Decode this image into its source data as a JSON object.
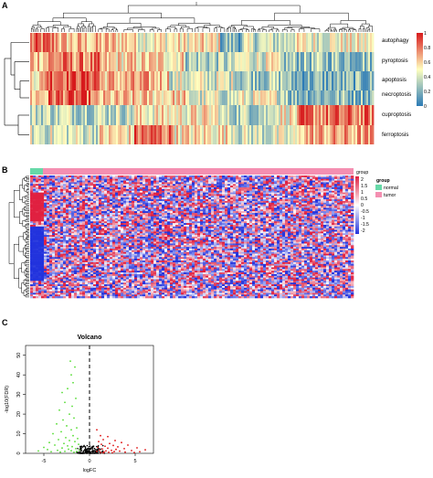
{
  "panels": {
    "a": {
      "label": "A",
      "rows": [
        "autophagy",
        "pyroptosis",
        "apoptosis",
        "necroptosis",
        "cuproptosis",
        "ferroptosis"
      ],
      "colorbar_ticks": [
        "1",
        "0.8",
        "0.6",
        "0.4",
        "0.2",
        "0"
      ],
      "colors": {
        "high": "#d7191c",
        "mid": "#ffffbf",
        "low": "#2c7bb6"
      }
    },
    "b": {
      "label": "B",
      "group_title": "group",
      "scale_ticks": [
        "2",
        "1.5",
        "1",
        "0.5",
        "0",
        "-0.5",
        "-1",
        "-1.5",
        "-2"
      ],
      "legend_title": "group",
      "legend_items": [
        {
          "label": "normal",
          "color": "#66d9a8"
        },
        {
          "label": "tumor",
          "color": "#f48fb1"
        }
      ],
      "colors": {
        "high": "#e02040",
        "low": "#2233dd"
      }
    },
    "c": {
      "label": "C",
      "title": "Volcano",
      "xlabel": "logFC",
      "ylabel": "-log10(FDR)",
      "xticks": [
        "-5",
        "0",
        "5"
      ],
      "yticks": [
        "0",
        "10",
        "20",
        "30",
        "40",
        "50"
      ],
      "colors": {
        "up": "#e01010",
        "down": "#55dd33",
        "ns": "#000000"
      }
    }
  },
  "chart_data": {
    "type": "scatter",
    "title": "Volcano",
    "xlabel": "logFC",
    "ylabel": "-log10(FDR)",
    "xlim": [
      -7,
      7
    ],
    "ylim": [
      0,
      55
    ],
    "cutoff_x": 0,
    "series": [
      {
        "name": "down",
        "color": "#55dd33",
        "points": [
          [
            -2.1,
            47
          ],
          [
            -1.6,
            44
          ],
          [
            -2.0,
            40
          ],
          [
            -1.8,
            36
          ],
          [
            -2.4,
            33
          ],
          [
            -3.0,
            31
          ],
          [
            -1.5,
            28
          ],
          [
            -2.7,
            26
          ],
          [
            -1.9,
            24
          ],
          [
            -3.3,
            22
          ],
          [
            -2.2,
            20
          ],
          [
            -1.7,
            18
          ],
          [
            -2.9,
            17
          ],
          [
            -3.6,
            15
          ],
          [
            -2.5,
            14
          ],
          [
            -1.4,
            13
          ],
          [
            -2.0,
            12
          ],
          [
            -3.1,
            11
          ],
          [
            -4.0,
            10
          ],
          [
            -1.8,
            9
          ],
          [
            -2.6,
            8
          ],
          [
            -1.3,
            7.5
          ],
          [
            -3.4,
            7
          ],
          [
            -2.2,
            6.5
          ],
          [
            -1.6,
            6
          ],
          [
            -4.4,
            5.5
          ],
          [
            -2.8,
            5
          ],
          [
            -1.2,
            4.6
          ],
          [
            -3.8,
            4.2
          ],
          [
            -2.4,
            3.8
          ],
          [
            -1.9,
            3.4
          ],
          [
            -5.0,
            3
          ],
          [
            -3.0,
            2.7
          ],
          [
            -1.5,
            2.4
          ],
          [
            -2.3,
            2.1
          ],
          [
            -4.6,
            1.9
          ],
          [
            -1.1,
            1.7
          ],
          [
            -3.5,
            1.5
          ],
          [
            -2.0,
            1.3
          ],
          [
            -5.6,
            1.2
          ],
          [
            -2.7,
            1
          ],
          [
            -1.4,
            0.9
          ],
          [
            -4.2,
            0.8
          ],
          [
            -3.2,
            0.6
          ],
          [
            -1.7,
            0.5
          ]
        ]
      },
      {
        "name": "up",
        "color": "#e01010",
        "points": [
          [
            0.8,
            12
          ],
          [
            1.2,
            9
          ],
          [
            2.0,
            8.5
          ],
          [
            1.5,
            7
          ],
          [
            2.8,
            6.5
          ],
          [
            1.0,
            6
          ],
          [
            3.5,
            5.5
          ],
          [
            2.2,
            5
          ],
          [
            1.3,
            4.6
          ],
          [
            4.2,
            4.2
          ],
          [
            2.6,
            4
          ],
          [
            1.7,
            3.6
          ],
          [
            3.1,
            3.3
          ],
          [
            0.9,
            3
          ],
          [
            5.2,
            2.8
          ],
          [
            2.0,
            2.6
          ],
          [
            3.8,
            2.4
          ],
          [
            1.4,
            2.2
          ],
          [
            2.9,
            2
          ],
          [
            6.1,
            1.8
          ],
          [
            1.1,
            1.7
          ],
          [
            2.4,
            1.5
          ],
          [
            4.6,
            1.4
          ],
          [
            1.8,
            1.2
          ],
          [
            3.3,
            1.1
          ],
          [
            0.8,
            1
          ],
          [
            2.7,
            0.9
          ],
          [
            5.5,
            0.8
          ],
          [
            1.6,
            0.7
          ],
          [
            3.9,
            0.6
          ],
          [
            2.1,
            0.5
          ],
          [
            1.2,
            0.4
          ],
          [
            4.9,
            0.4
          ],
          [
            2.5,
            0.3
          ],
          [
            1.5,
            0.25
          ]
        ]
      }
    ]
  }
}
